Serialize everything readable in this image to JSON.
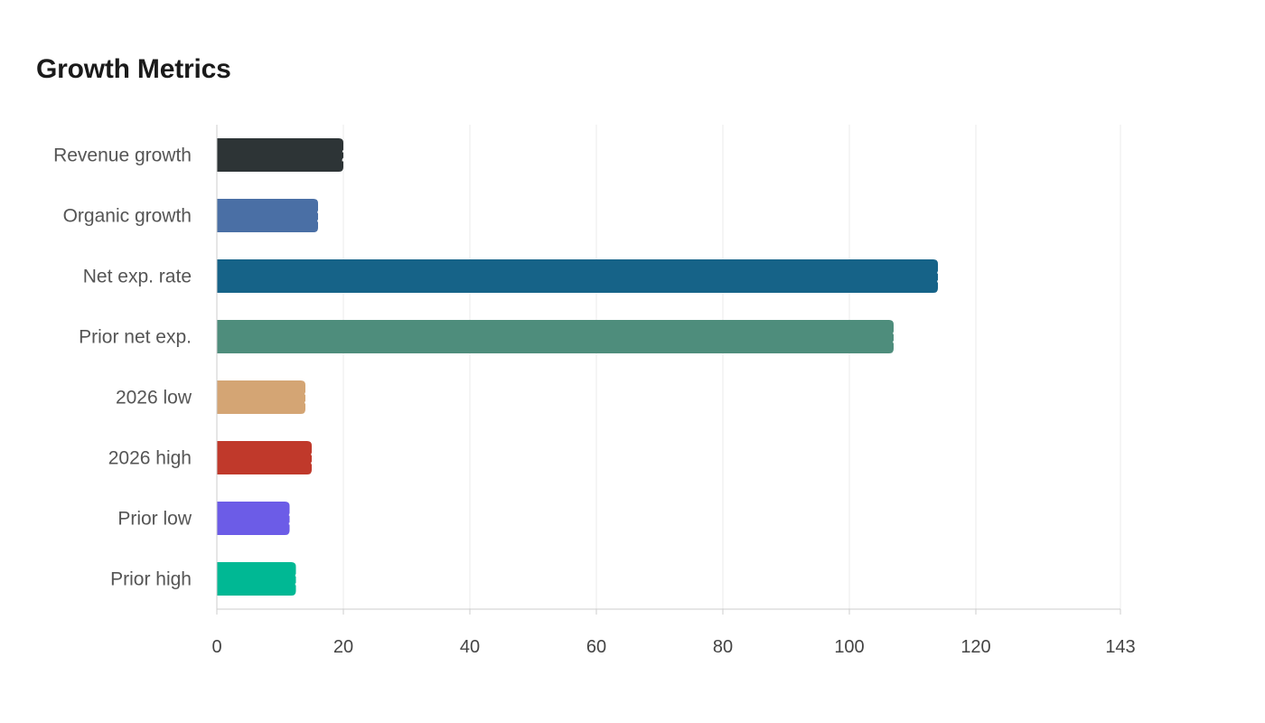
{
  "chart_data": {
    "type": "bar",
    "orientation": "horizontal",
    "title": "Growth Metrics",
    "xlabel": "",
    "ylabel": "",
    "xlim": [
      0,
      143
    ],
    "x_ticks": [
      0,
      20,
      40,
      60,
      80,
      100,
      120,
      143
    ],
    "grid": "vertical",
    "legend": "none",
    "categories": [
      "Revenue growth",
      "Organic growth",
      "Net exp. rate",
      "Prior net exp.",
      "2026 low",
      "2026 high",
      "Prior low",
      "Prior high"
    ],
    "values": [
      20,
      16,
      114,
      107,
      14,
      15,
      11.5,
      12.5
    ],
    "value_labels": [
      "20",
      "16",
      "114",
      "107",
      "14",
      "15",
      "11.5",
      "12.5"
    ],
    "colors": [
      "#2d3436",
      "#4a6fa5",
      "#166388",
      "#4e8d7c",
      "#d4a574",
      "#c0392b",
      "#6c5ce7",
      "#00b894"
    ]
  }
}
